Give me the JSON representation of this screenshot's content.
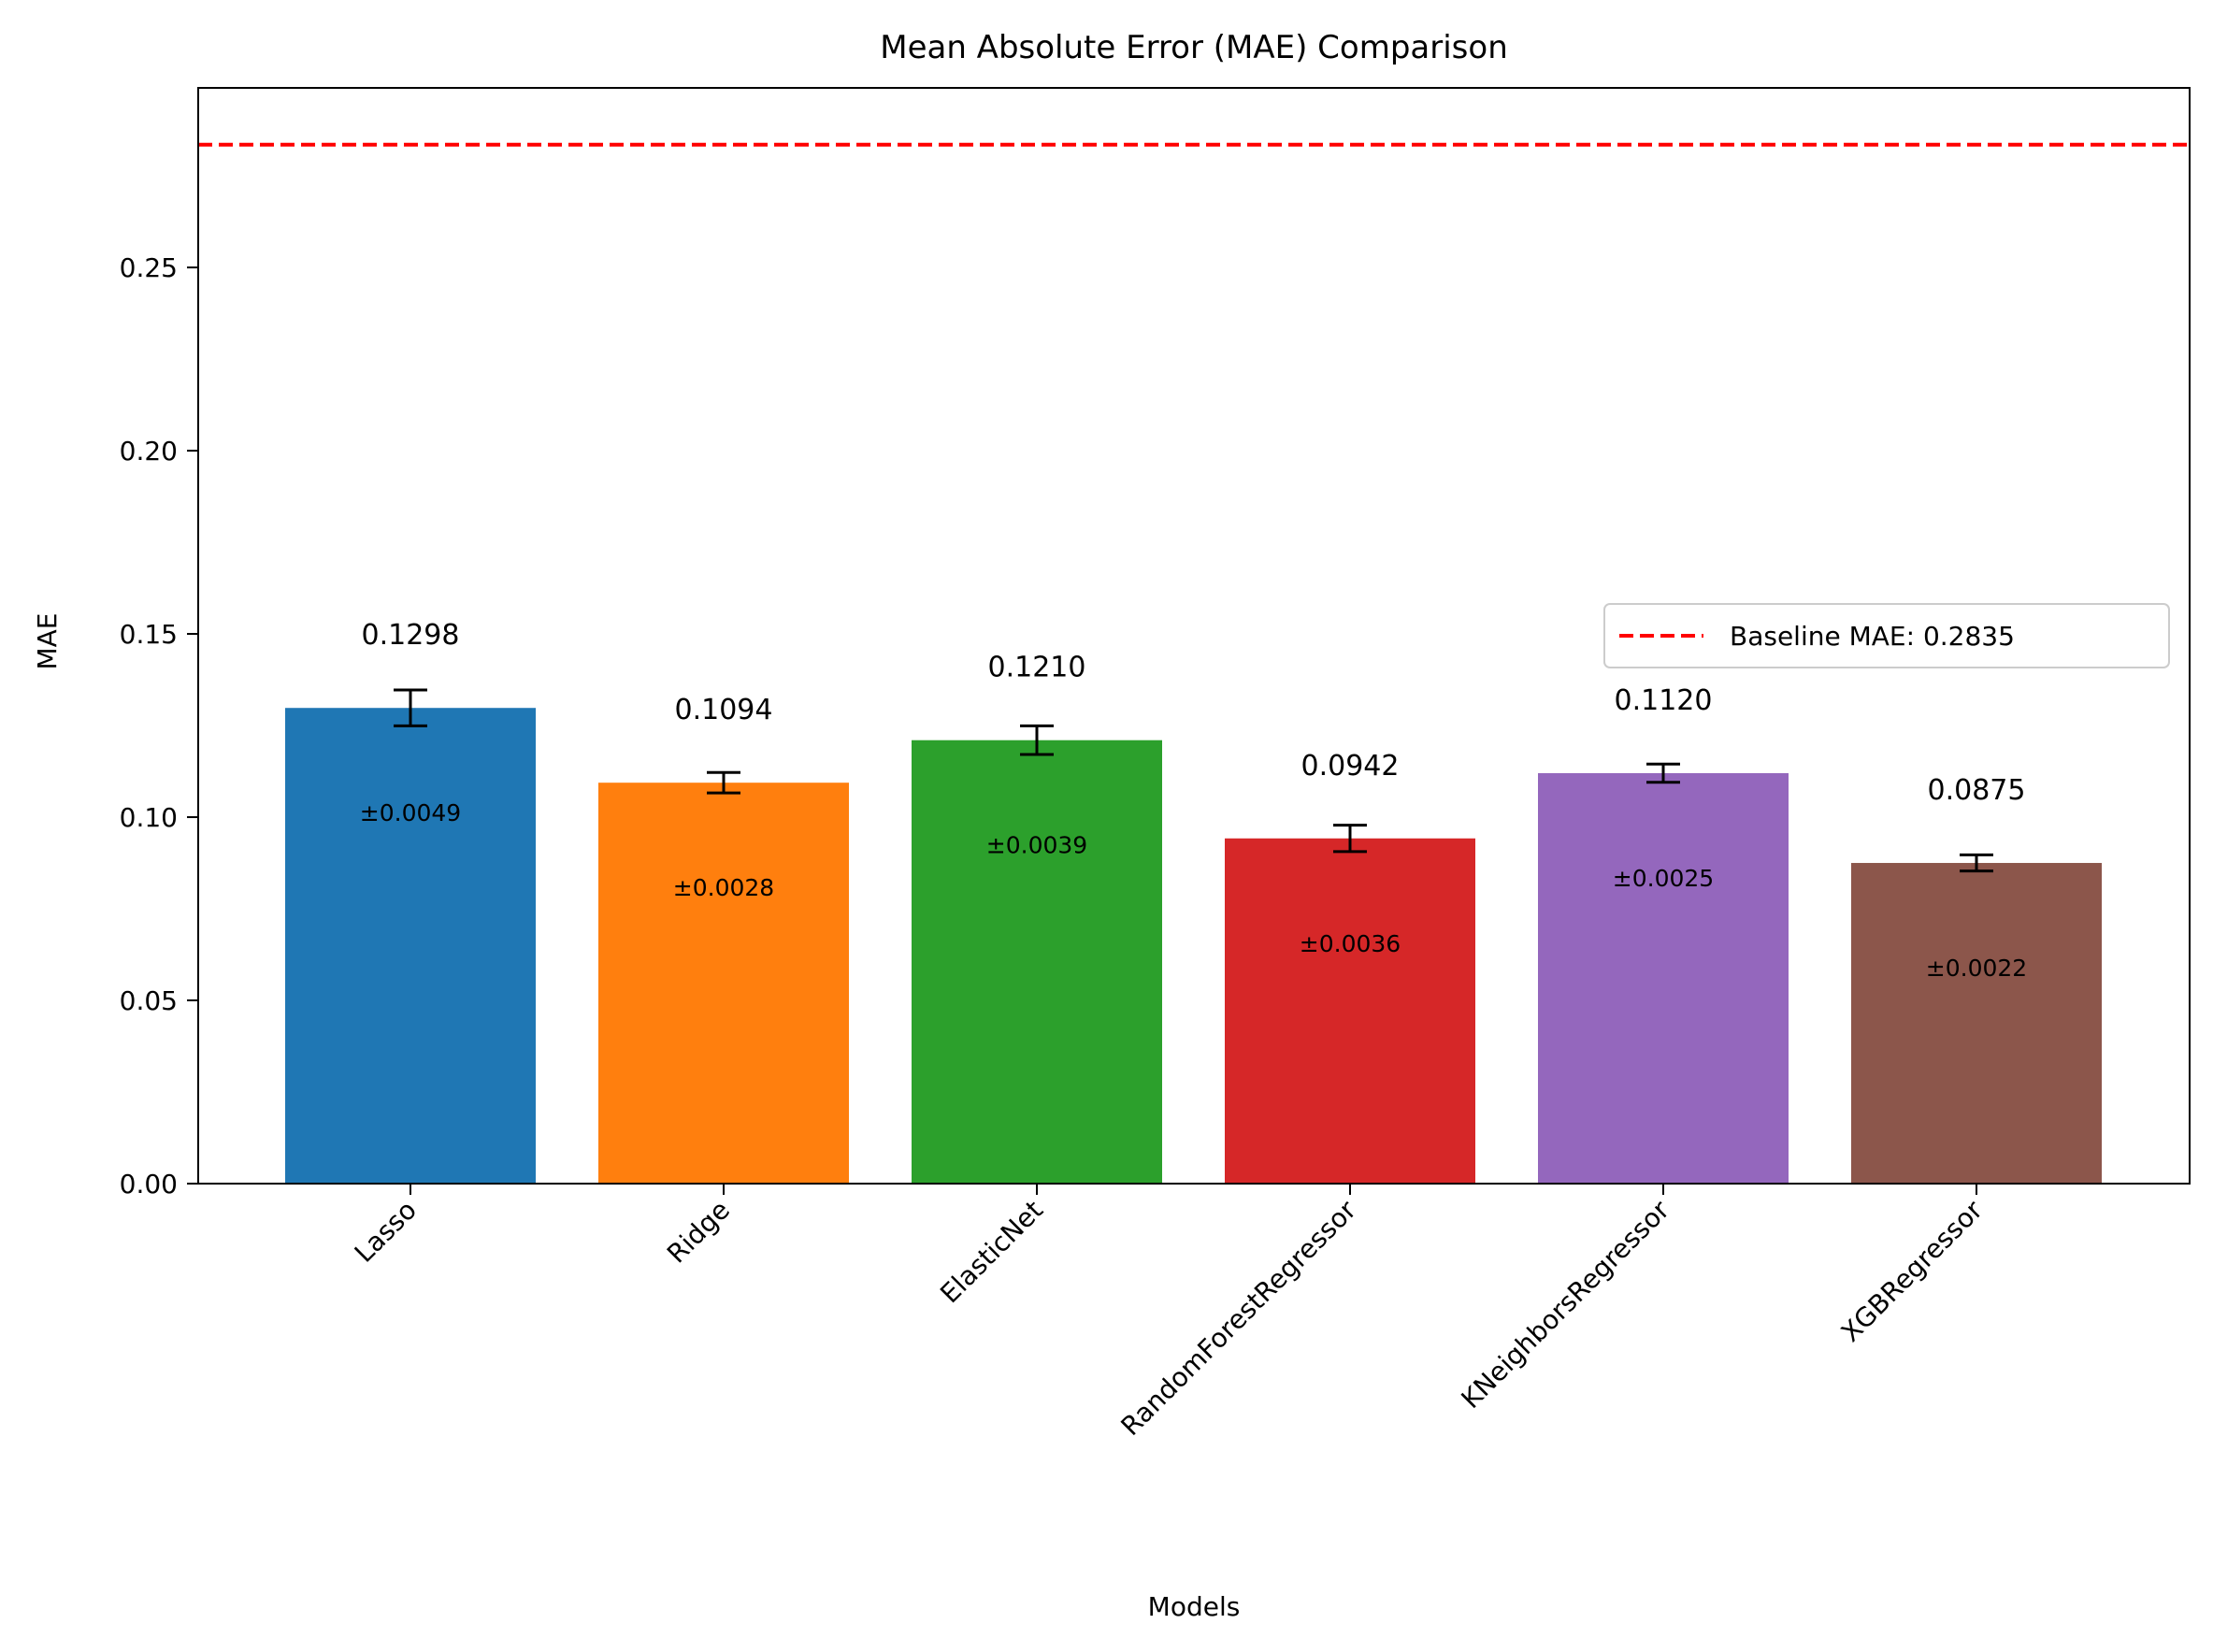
{
  "chart_data": {
    "type": "bar",
    "title": "Mean Absolute Error (MAE) Comparison",
    "xlabel": "Models",
    "ylabel": "MAE",
    "ylim": [
      0,
      0.299
    ],
    "yticks": [
      "0.00",
      "0.05",
      "0.10",
      "0.15",
      "0.20",
      "0.25"
    ],
    "categories": [
      "Lasso",
      "Ridge",
      "ElasticNet",
      "RandomForestRegressor",
      "KNeighborsRegressor",
      "XGBRegressor"
    ],
    "values": [
      0.1298,
      0.1094,
      0.121,
      0.0942,
      0.112,
      0.0875
    ],
    "errors": [
      0.0049,
      0.0028,
      0.0039,
      0.0036,
      0.0025,
      0.0022
    ],
    "value_labels": [
      "0.1298",
      "0.1094",
      "0.1210",
      "0.0942",
      "0.1120",
      "0.0875"
    ],
    "error_labels": [
      "±0.0049",
      "±0.0028",
      "±0.0039",
      "±0.0036",
      "±0.0025",
      "±0.0022"
    ],
    "colors": [
      "#1f77b4",
      "#ff7f0e",
      "#2ca02c",
      "#d62728",
      "#9467bd",
      "#8c564b"
    ],
    "baseline": {
      "value": 0.2835,
      "label": "Baseline MAE: 0.2835",
      "color": "#ff0000",
      "style": "dashed"
    },
    "legend_position": "center-right",
    "grid": false
  }
}
